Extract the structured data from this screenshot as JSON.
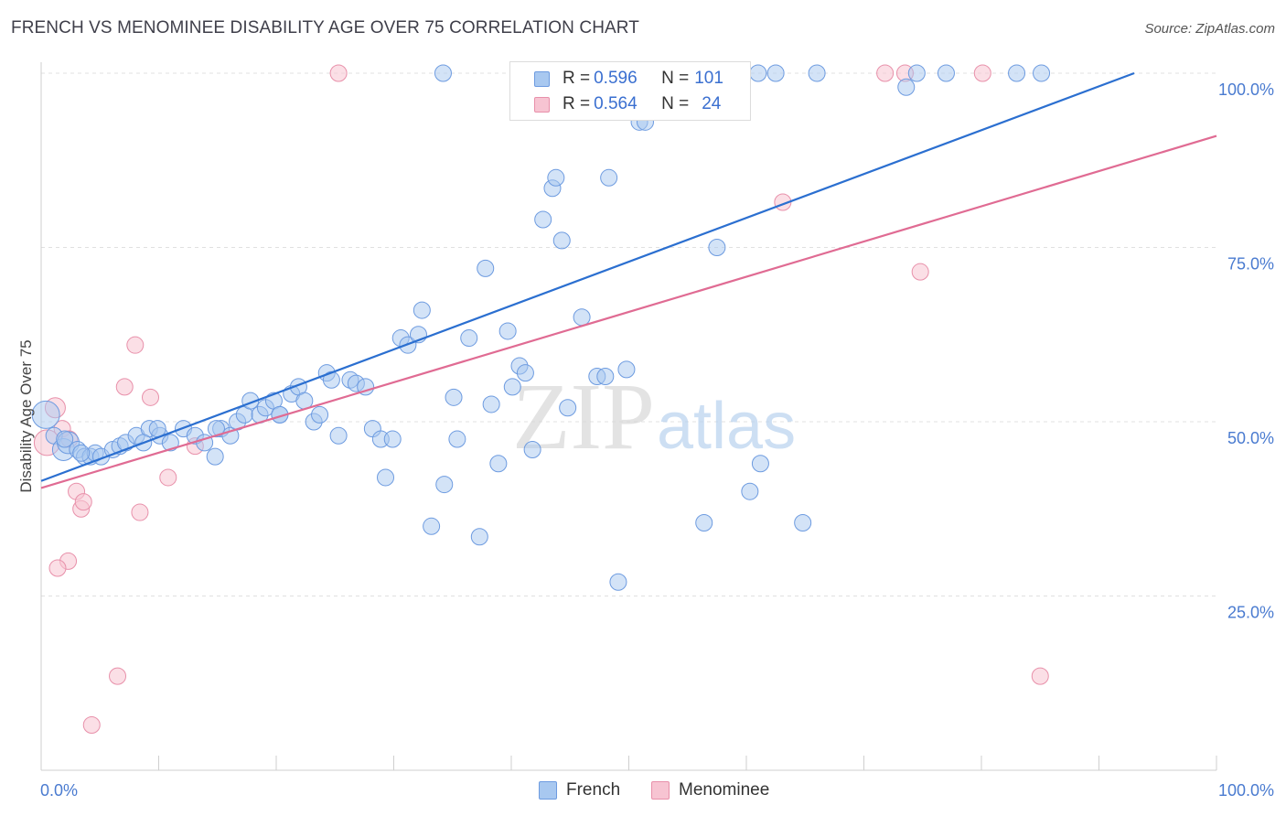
{
  "title": "FRENCH VS MENOMINEE DISABILITY AGE OVER 75 CORRELATION CHART",
  "source": "Source: ZipAtlas.com",
  "watermark": {
    "zip": "ZIP",
    "atlas": "atlas"
  },
  "colors": {
    "french_fill": "#a8c8f0",
    "french_stroke": "#6d9be0",
    "french_line": "#2b6fd0",
    "menominee_fill": "#f7c4d2",
    "menominee_stroke": "#e890aa",
    "menominee_line": "#e06b93",
    "tick": "#4a7bd0",
    "grid": "#e0e0e0"
  },
  "legend": {
    "french": {
      "r_label": "R = ",
      "r_value": "0.596",
      "n_label": "N = ",
      "n_value": "101"
    },
    "menominee": {
      "r_label": "R = ",
      "r_value": "0.564",
      "n_label": "N = ",
      "n_value": "24"
    }
  },
  "bottom_legend": {
    "french": "French",
    "menominee": "Menominee"
  },
  "chart_data": {
    "type": "scatter",
    "title": "FRENCH VS MENOMINEE DISABILITY AGE OVER 75 CORRELATION CHART",
    "xlabel": "",
    "ylabel": "Disability Age Over 75",
    "xlim": [
      0,
      100
    ],
    "ylim": [
      0,
      102
    ],
    "x_tick_labels": [
      "0.0%",
      "100.0%"
    ],
    "y_ticks": [
      25,
      50,
      75,
      100
    ],
    "y_tick_labels": [
      "25.0%",
      "50.0%",
      "75.0%",
      "100.0%"
    ],
    "grid": true,
    "legend_position": "top-center",
    "series": [
      {
        "name": "French",
        "trend": {
          "x": [
            0,
            93
          ],
          "y": [
            41.5,
            100
          ]
        },
        "points": [
          [
            0.4,
            51
          ],
          [
            1.1,
            48
          ],
          [
            1.9,
            46
          ],
          [
            2.3,
            47
          ],
          [
            3.1,
            46
          ],
          [
            3.7,
            45
          ],
          [
            4.2,
            45
          ],
          [
            4.6,
            45.5
          ],
          [
            5.1,
            45
          ],
          [
            6.1,
            46
          ],
          [
            6.7,
            46.5
          ],
          [
            7.2,
            47
          ],
          [
            8.1,
            48
          ],
          [
            9.2,
            49
          ],
          [
            10.1,
            48
          ],
          [
            11.0,
            47
          ],
          [
            12.1,
            49
          ],
          [
            13.1,
            48
          ],
          [
            13.9,
            47
          ],
          [
            14.8,
            45
          ],
          [
            15.3,
            49
          ],
          [
            16.1,
            48
          ],
          [
            16.7,
            50
          ],
          [
            17.3,
            51
          ],
          [
            17.8,
            53
          ],
          [
            18.6,
            51
          ],
          [
            19.1,
            52
          ],
          [
            19.8,
            53
          ],
          [
            20.3,
            51
          ],
          [
            21.3,
            54
          ],
          [
            21.9,
            55
          ],
          [
            22.4,
            53
          ],
          [
            23.2,
            50
          ],
          [
            23.7,
            51
          ],
          [
            24.3,
            57
          ],
          [
            24.7,
            56
          ],
          [
            25.3,
            48
          ],
          [
            26.3,
            56
          ],
          [
            26.8,
            55.5
          ],
          [
            27.6,
            55
          ],
          [
            28.2,
            49
          ],
          [
            28.9,
            47.5
          ],
          [
            29.3,
            42
          ],
          [
            29.9,
            47.5
          ],
          [
            30.6,
            62
          ],
          [
            31.2,
            61
          ],
          [
            32.1,
            62.5
          ],
          [
            32.4,
            66
          ],
          [
            33.2,
            35
          ],
          [
            34.3,
            41
          ],
          [
            35.1,
            53.5
          ],
          [
            35.4,
            47.5
          ],
          [
            36.4,
            62
          ],
          [
            37.3,
            33.5
          ],
          [
            37.8,
            72
          ],
          [
            38.3,
            52.5
          ],
          [
            38.9,
            44
          ],
          [
            39.7,
            63
          ],
          [
            40.1,
            55
          ],
          [
            40.7,
            58
          ],
          [
            41.2,
            57
          ],
          [
            41.8,
            46
          ],
          [
            42.7,
            79
          ],
          [
            43.5,
            83.5
          ],
          [
            43.8,
            85
          ],
          [
            44.3,
            76
          ],
          [
            44.8,
            52
          ],
          [
            46.0,
            65
          ],
          [
            47.3,
            56.5
          ],
          [
            48.0,
            56.5
          ],
          [
            48.3,
            85
          ],
          [
            49.1,
            27
          ],
          [
            48.9,
            100
          ],
          [
            49.8,
            57.5
          ],
          [
            50.9,
            93
          ],
          [
            51.4,
            93
          ],
          [
            52.2,
            100
          ],
          [
            53.2,
            96
          ],
          [
            54.3,
            100
          ],
          [
            56.4,
            35.5
          ],
          [
            57.5,
            75
          ],
          [
            59.3,
            100
          ],
          [
            61.0,
            100
          ],
          [
            62.5,
            100
          ],
          [
            64.8,
            35.5
          ],
          [
            66.0,
            100
          ],
          [
            73.6,
            98
          ],
          [
            74.5,
            100
          ],
          [
            77.0,
            100
          ],
          [
            83.0,
            100
          ],
          [
            85.1,
            100
          ],
          [
            61.2,
            44
          ],
          [
            60.3,
            40
          ],
          [
            44.5,
            100
          ],
          [
            34.2,
            100
          ],
          [
            20.3,
            51
          ],
          [
            14.9,
            49
          ],
          [
            9.9,
            49
          ],
          [
            8.7,
            47
          ],
          [
            3.4,
            45.5
          ],
          [
            2.0,
            47.5
          ]
        ]
      },
      {
        "name": "Menominee",
        "trend": {
          "x": [
            0,
            100
          ],
          "y": [
            40.5,
            91
          ]
        },
        "points": [
          [
            0.5,
            47
          ],
          [
            1.2,
            52
          ],
          [
            1.8,
            49
          ],
          [
            2.4,
            47.5
          ],
          [
            3.0,
            40
          ],
          [
            3.4,
            37.5
          ],
          [
            3.6,
            38.5
          ],
          [
            2.3,
            30
          ],
          [
            1.4,
            29
          ],
          [
            4.3,
            6.5
          ],
          [
            6.5,
            13.5
          ],
          [
            7.1,
            55
          ],
          [
            8.0,
            61
          ],
          [
            8.4,
            37
          ],
          [
            9.3,
            53.5
          ],
          [
            10.8,
            42
          ],
          [
            13.1,
            46.5
          ],
          [
            25.3,
            100
          ],
          [
            63.1,
            81.5
          ],
          [
            71.8,
            100
          ],
          [
            73.5,
            100
          ],
          [
            74.8,
            71.5
          ],
          [
            80.1,
            100
          ],
          [
            85.0,
            13.5
          ]
        ]
      }
    ]
  }
}
